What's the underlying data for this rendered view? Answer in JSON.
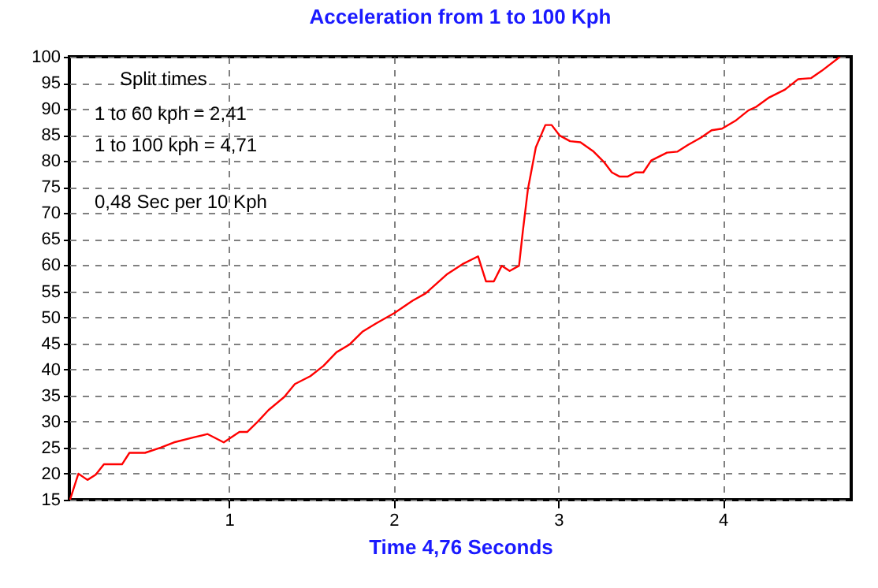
{
  "chart_data": {
    "type": "line",
    "title": "Acceleration from 1 to 100 Kph",
    "xlabel": "Time 4,76 Seconds",
    "annotations": [
      "Split times",
      "1 to 60 kph = 2,41",
      "1 to 100 kph = 4,71",
      "0,48 Sec per 10 Kph"
    ],
    "x": [
      0.034,
      0.085,
      0.14,
      0.19,
      0.24,
      0.35,
      0.395,
      0.49,
      0.585,
      0.665,
      0.79,
      0.87,
      0.968,
      1.063,
      1.11,
      1.175,
      1.24,
      1.335,
      1.4,
      1.494,
      1.574,
      1.653,
      1.733,
      1.813,
      1.892,
      2.004,
      2.115,
      2.195,
      2.322,
      2.418,
      2.513,
      2.561,
      2.609,
      2.657,
      2.705,
      2.762,
      2.785,
      2.816,
      2.864,
      2.922,
      2.96,
      3.008,
      3.072,
      3.135,
      3.215,
      3.278,
      3.326,
      3.374,
      3.421,
      3.469,
      3.517,
      3.565,
      3.661,
      3.725,
      3.789,
      3.868,
      3.932,
      3.995,
      4.076,
      4.155,
      4.203,
      4.282,
      4.378,
      4.458,
      4.537,
      4.601,
      4.712
    ],
    "series": [
      {
        "color": "#ff0000",
        "values": [
          15,
          20,
          18.8,
          19.8,
          21.8,
          21.8,
          24,
          24,
          25,
          26,
          27,
          27.6,
          26,
          28,
          28,
          30,
          32.2,
          34.7,
          37.2,
          38.7,
          40.7,
          43.3,
          44.8,
          47.3,
          48.8,
          50.8,
          53.2,
          54.6,
          58.2,
          60.2,
          61.7,
          56.9,
          56.9,
          59.9,
          58.9,
          59.9,
          66.5,
          74.6,
          82.6,
          86.9,
          86.9,
          84.9,
          83.8,
          83.6,
          81.8,
          79.8,
          77.8,
          77,
          77,
          77.8,
          77.8,
          80.1,
          81.6,
          81.8,
          83.1,
          84.5,
          85.9,
          86.2,
          87.7,
          89.7,
          90.4,
          92.2,
          93.7,
          95.7,
          95.9,
          97.3,
          100
        ]
      }
    ],
    "xlim": [
      0.03,
      4.78
    ],
    "xticks": [
      1,
      2,
      3,
      4
    ],
    "ylim": [
      15,
      100
    ],
    "yticks": [
      15,
      20,
      25,
      30,
      35,
      40,
      45,
      50,
      55,
      60,
      65,
      70,
      75,
      80,
      85,
      90,
      95,
      100
    ],
    "grid": true,
    "line_style": "solid"
  }
}
